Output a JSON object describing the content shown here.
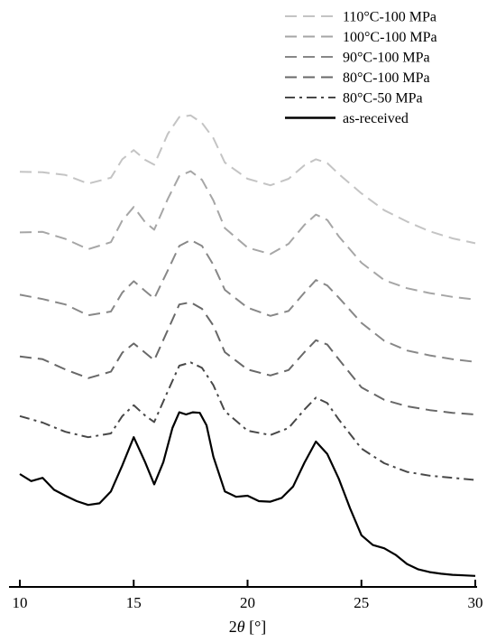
{
  "chart_data": {
    "type": "line",
    "xlabel_prefix": "2",
    "xlabel_var": "θ",
    "xlabel_unit": " [°]",
    "xlim": [
      10,
      30
    ],
    "xticks": [
      10,
      15,
      20,
      25,
      30
    ],
    "ylabel": "",
    "y_axis_shown": false,
    "legend_position": "top-right",
    "series": [
      {
        "name": "110°C-100 MPa",
        "color": "#c4c4c4",
        "dash": "dashed",
        "x": [
          10,
          11,
          12,
          13,
          14,
          14.5,
          15,
          15.5,
          15.9,
          16.5,
          17,
          17.5,
          18,
          18.5,
          19,
          20,
          21,
          21.8,
          22.5,
          23,
          23.5,
          24,
          25,
          26,
          27,
          28,
          29,
          30
        ],
        "y": [
          7.28,
          7.27,
          7.22,
          7.06,
          7.17,
          7.51,
          7.68,
          7.5,
          7.41,
          7.98,
          8.29,
          8.32,
          8.18,
          7.9,
          7.45,
          7.15,
          7.03,
          7.15,
          7.4,
          7.51,
          7.44,
          7.24,
          6.88,
          6.57,
          6.36,
          6.18,
          6.05,
          5.96
        ]
      },
      {
        "name": "100°C-100 MPa",
        "color": "#a6a6a6",
        "dash": "dashed",
        "x": [
          10,
          11,
          12,
          13,
          14,
          14.5,
          15,
          15.5,
          15.9,
          16.5,
          17,
          17.5,
          18,
          18.5,
          19,
          20,
          21,
          21.8,
          22.5,
          23,
          23.5,
          24,
          25,
          26,
          27,
          28,
          29,
          30
        ],
        "y": [
          6.16,
          6.17,
          6.04,
          5.85,
          5.98,
          6.38,
          6.63,
          6.35,
          6.21,
          6.78,
          7.2,
          7.29,
          7.13,
          6.75,
          6.24,
          5.88,
          5.76,
          5.95,
          6.3,
          6.49,
          6.39,
          6.09,
          5.6,
          5.28,
          5.13,
          5.04,
          4.97,
          4.92
        ]
      },
      {
        "name": "90°C-100 MPa",
        "color": "#888888",
        "dash": "dashed",
        "x": [
          10,
          11,
          12,
          13,
          14,
          14.5,
          15,
          15.5,
          15.9,
          16.5,
          17,
          17.5,
          18,
          18.5,
          19,
          20,
          21,
          21.8,
          22.5,
          23,
          23.5,
          24,
          25,
          26,
          27,
          28,
          29,
          30
        ],
        "y": [
          5.01,
          4.93,
          4.83,
          4.63,
          4.7,
          5.05,
          5.26,
          5.08,
          4.94,
          5.46,
          5.91,
          6.02,
          5.91,
          5.56,
          5.1,
          4.77,
          4.62,
          4.71,
          5.05,
          5.28,
          5.18,
          4.96,
          4.49,
          4.16,
          3.98,
          3.89,
          3.82,
          3.77
        ]
      },
      {
        "name": "80°C-100 MPa",
        "color": "#686868",
        "dash": "dashed",
        "x": [
          10,
          11,
          12,
          13,
          14,
          14.5,
          15,
          15.5,
          15.9,
          16.5,
          17,
          17.5,
          18,
          18.5,
          19,
          20,
          21,
          21.8,
          22.5,
          23,
          23.5,
          24,
          25,
          26,
          27,
          28,
          29,
          30
        ],
        "y": [
          3.87,
          3.82,
          3.63,
          3.47,
          3.59,
          3.94,
          4.11,
          3.94,
          3.8,
          4.36,
          4.83,
          4.87,
          4.75,
          4.44,
          3.95,
          3.63,
          3.52,
          3.62,
          3.95,
          4.17,
          4.09,
          3.82,
          3.3,
          3.07,
          2.95,
          2.88,
          2.83,
          2.8
        ]
      },
      {
        "name": "80°C-50 MPa",
        "color": "#484848",
        "dash": "dashdot",
        "x": [
          10,
          11,
          12,
          13,
          14,
          14.5,
          15,
          15.5,
          15.9,
          16.5,
          17,
          17.5,
          18,
          18.5,
          19,
          20,
          21,
          21.8,
          22.5,
          23,
          23.5,
          24,
          25,
          26,
          27,
          28,
          29,
          30
        ],
        "y": [
          2.77,
          2.65,
          2.48,
          2.38,
          2.45,
          2.77,
          2.97,
          2.78,
          2.66,
          3.23,
          3.7,
          3.76,
          3.66,
          3.34,
          2.86,
          2.5,
          2.42,
          2.55,
          2.89,
          3.11,
          3.01,
          2.71,
          2.17,
          1.9,
          1.74,
          1.67,
          1.63,
          1.59
        ]
      },
      {
        "name": "as-received",
        "color": "#000000",
        "dash": "solid",
        "x": [
          10,
          10.5,
          11,
          11.5,
          12,
          12.5,
          13,
          13.5,
          14,
          14.5,
          15,
          15.5,
          15.9,
          16.3,
          16.7,
          17,
          17.3,
          17.6,
          17.9,
          18.2,
          18.5,
          19,
          19.5,
          20,
          20.5,
          21,
          21.5,
          22,
          22.5,
          23,
          23.5,
          24,
          24.5,
          25,
          25.5,
          26,
          26.5,
          27,
          27.5,
          28,
          28.5,
          29,
          29.5,
          30
        ],
        "y": [
          1.7,
          1.57,
          1.63,
          1.41,
          1.3,
          1.2,
          1.13,
          1.16,
          1.38,
          1.86,
          2.38,
          1.92,
          1.51,
          1.92,
          2.55,
          2.84,
          2.8,
          2.84,
          2.83,
          2.6,
          2.02,
          1.38,
          1.28,
          1.3,
          1.2,
          1.19,
          1.26,
          1.47,
          1.91,
          2.3,
          2.07,
          1.62,
          1.07,
          0.57,
          0.39,
          0.33,
          0.21,
          0.04,
          -0.06,
          -0.11,
          -0.14,
          -0.16,
          -0.17,
          -0.18
        ]
      }
    ]
  }
}
